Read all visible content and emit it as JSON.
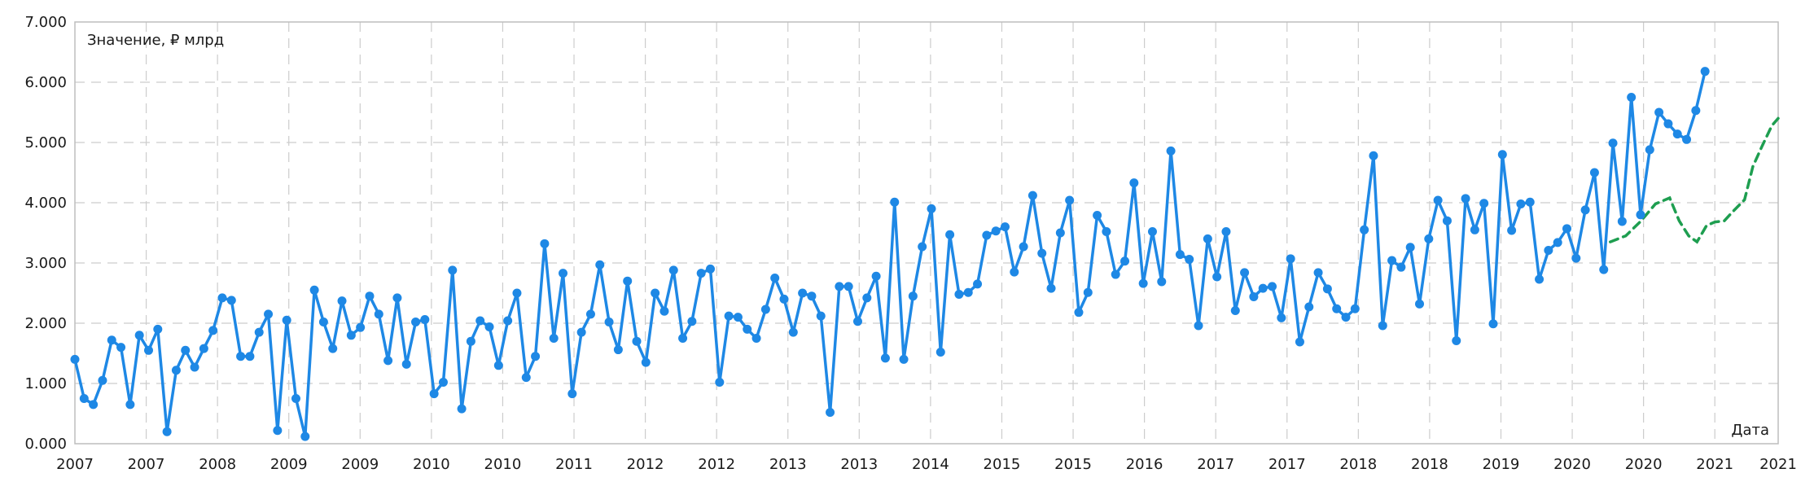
{
  "chart_data": {
    "type": "line",
    "ylabel": "Значение, ₽ млрд",
    "xlabel": "Дата",
    "ylim": [
      0,
      7
    ],
    "xlim": [
      2007.0,
      2021.333
    ],
    "grid": true,
    "y_ticks": [
      {
        "value": 0,
        "label": "0.000"
      },
      {
        "value": 1,
        "label": "1.000"
      },
      {
        "value": 2,
        "label": "2.000"
      },
      {
        "value": 3,
        "label": "3.000"
      },
      {
        "value": 4,
        "label": "4.000"
      },
      {
        "value": 5,
        "label": "5.000"
      },
      {
        "value": 6,
        "label": "6.000"
      },
      {
        "value": 7,
        "label": "7.000"
      }
    ],
    "x_ticks": [
      {
        "value": 2007.0,
        "label": "2007"
      },
      {
        "value": 2007.6,
        "label": "2007"
      },
      {
        "value": 2008.2,
        "label": "2008"
      },
      {
        "value": 2008.8,
        "label": "2009"
      },
      {
        "value": 2009.4,
        "label": "2009"
      },
      {
        "value": 2010.0,
        "label": "2010"
      },
      {
        "value": 2010.6,
        "label": "2010"
      },
      {
        "value": 2011.2,
        "label": "2011"
      },
      {
        "value": 2011.8,
        "label": "2012"
      },
      {
        "value": 2012.4,
        "label": "2012"
      },
      {
        "value": 2013.0,
        "label": "2013"
      },
      {
        "value": 2013.6,
        "label": "2013"
      },
      {
        "value": 2014.2,
        "label": "2014"
      },
      {
        "value": 2014.8,
        "label": "2015"
      },
      {
        "value": 2015.4,
        "label": "2015"
      },
      {
        "value": 2016.0,
        "label": "2016"
      },
      {
        "value": 2016.6,
        "label": "2017"
      },
      {
        "value": 2017.2,
        "label": "2017"
      },
      {
        "value": 2017.8,
        "label": "2018"
      },
      {
        "value": 2018.4,
        "label": "2018"
      },
      {
        "value": 2019.0,
        "label": "2019"
      },
      {
        "value": 2019.6,
        "label": "2020"
      },
      {
        "value": 2020.2,
        "label": "2020"
      },
      {
        "value": 2020.8,
        "label": "2021"
      },
      {
        "value": 2021.333,
        "label": "2021"
      }
    ],
    "series": [
      {
        "color": "#1e88e5",
        "style": "solid-markers",
        "x_start": 2007.0,
        "x_step": 0.0775,
        "values": [
          1.4,
          0.75,
          0.65,
          1.05,
          1.72,
          1.6,
          0.65,
          1.8,
          1.55,
          1.9,
          0.2,
          1.22,
          1.55,
          1.27,
          1.58,
          1.88,
          2.42,
          2.38,
          1.45,
          1.45,
          1.85,
          2.15,
          0.22,
          2.05,
          0.75,
          0.12,
          2.55,
          2.02,
          1.58,
          2.37,
          1.8,
          1.93,
          2.45,
          2.15,
          1.38,
          2.42,
          1.32,
          2.02,
          2.06,
          0.83,
          1.02,
          2.88,
          0.58,
          1.7,
          2.04,
          1.94,
          1.3,
          2.04,
          2.5,
          1.1,
          1.45,
          3.32,
          1.75,
          2.83,
          0.83,
          1.85,
          2.15,
          2.97,
          2.02,
          1.56,
          2.7,
          1.7,
          1.35,
          2.5,
          2.2,
          2.88,
          1.75,
          2.03,
          2.83,
          2.9,
          1.02,
          2.12,
          2.1,
          1.9,
          1.75,
          2.23,
          2.75,
          2.4,
          1.85,
          2.5,
          2.45,
          2.12,
          0.52,
          2.61,
          2.61,
          2.03,
          2.42,
          2.78,
          1.42,
          4.01,
          1.4,
          2.45,
          3.27,
          3.9,
          1.52,
          3.47,
          2.48,
          2.51,
          2.65,
          3.46,
          3.53,
          3.6,
          2.85,
          3.27,
          4.12,
          3.16,
          2.58,
          3.5,
          4.04,
          2.18,
          2.51,
          3.79,
          3.52,
          2.81,
          3.03,
          4.33,
          2.66,
          3.52,
          2.69,
          4.86,
          3.14,
          3.06,
          1.96,
          3.4,
          2.77,
          3.52,
          2.21,
          2.84,
          2.44,
          2.58,
          2.61,
          2.09,
          3.07,
          1.69,
          2.27,
          2.84,
          2.57,
          2.24,
          2.1,
          2.24,
          3.55,
          4.78,
          1.96,
          3.04,
          2.93,
          3.26,
          2.32,
          3.4,
          4.04,
          3.7,
          1.71,
          4.07,
          3.55,
          3.99,
          1.99,
          4.8,
          3.54,
          3.98,
          4.01,
          2.73,
          3.21,
          3.34,
          3.57,
          3.08,
          3.88,
          4.5,
          2.89,
          4.99,
          3.69,
          5.75,
          3.8,
          4.88,
          5.5,
          5.31,
          5.14,
          5.05,
          5.53,
          6.18
        ]
      },
      {
        "color": "#1e9e50",
        "style": "dashed",
        "x": [
          2019.92,
          2020.05,
          2020.18,
          2020.3,
          2020.42,
          2020.5,
          2020.58,
          2020.65,
          2020.73,
          2020.8,
          2020.88,
          2020.95,
          2021.05,
          2021.12,
          2021.2,
          2021.28,
          2021.333
        ],
        "values": [
          3.35,
          3.45,
          3.7,
          3.98,
          4.08,
          3.7,
          3.45,
          3.35,
          3.62,
          3.68,
          3.7,
          3.85,
          4.05,
          4.6,
          4.95,
          5.28,
          5.4
        ]
      }
    ]
  }
}
